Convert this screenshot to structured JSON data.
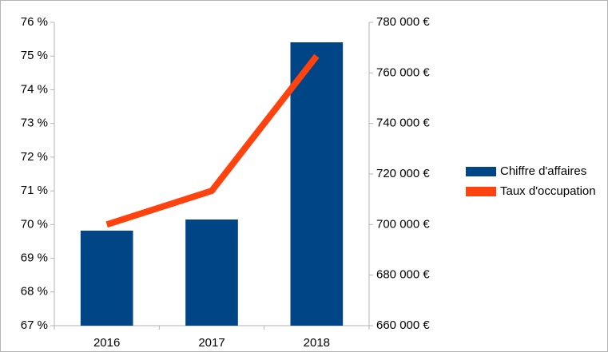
{
  "chart_data": {
    "type": "bar",
    "categories": [
      "2016",
      "2017",
      "2018"
    ],
    "series": [
      {
        "name": "Chiffre d'affaires",
        "color": "#004586",
        "axis": "y2",
        "values": [
          697600,
          702000,
          772100
        ]
      },
      {
        "name": "Taux d'occupation",
        "color": "#ff420e",
        "type": "line",
        "values": [
          70.0,
          71.0,
          75.0
        ]
      }
    ],
    "ylim": [
      67,
      76
    ],
    "yticks": [
      {
        "value": 67,
        "label": "67 %"
      },
      {
        "value": 68,
        "label": "68 %"
      },
      {
        "value": 69,
        "label": "69 %"
      },
      {
        "value": 70,
        "label": "70 %"
      },
      {
        "value": 71,
        "label": "71 %"
      },
      {
        "value": 72,
        "label": "72 %"
      },
      {
        "value": 73,
        "label": "73 %"
      },
      {
        "value": 74,
        "label": "74 %"
      },
      {
        "value": 75,
        "label": "75 %"
      },
      {
        "value": 76,
        "label": "76 %"
      }
    ],
    "y2lim": [
      660000,
      780000
    ],
    "y2ticks": [
      {
        "value": 660000,
        "label": "660 000 €"
      },
      {
        "value": 680000,
        "label": "680 000 €"
      },
      {
        "value": 700000,
        "label": "700 000 €"
      },
      {
        "value": 720000,
        "label": "720 000 €"
      },
      {
        "value": 740000,
        "label": "740 000 €"
      },
      {
        "value": 760000,
        "label": "760 000 €"
      },
      {
        "value": 780000,
        "label": "780 000 €"
      }
    ],
    "legend": "right"
  }
}
